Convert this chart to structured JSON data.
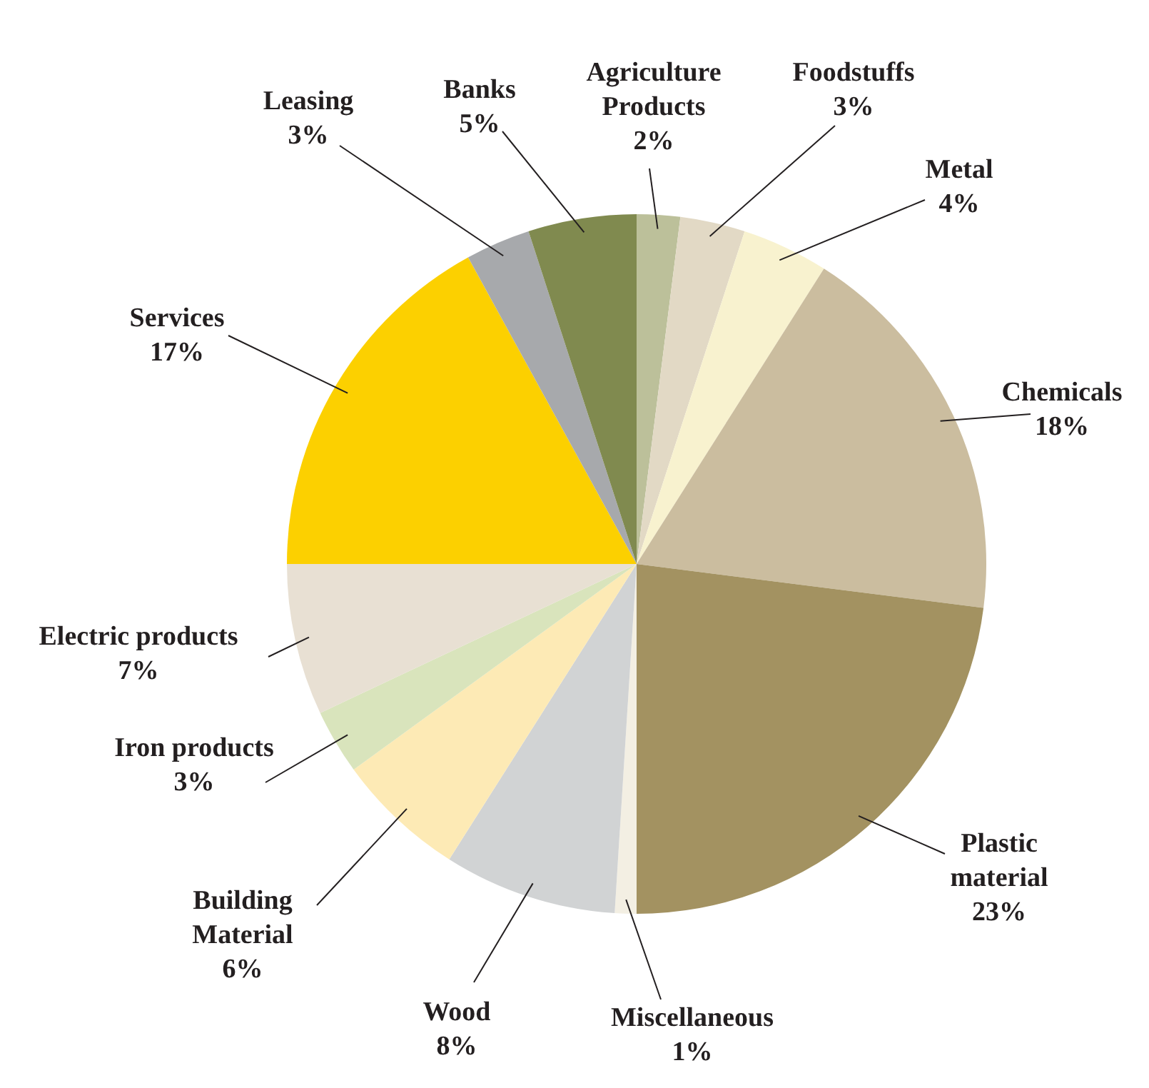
{
  "chart_data": {
    "type": "pie",
    "categories": [
      "Agriculture Products",
      "Foodstuffs",
      "Metal",
      "Chemicals",
      "Plastic material",
      "Miscellaneous",
      "Wood",
      "Building Material",
      "Iron products",
      "Electric products",
      "Services",
      "Leasing",
      "Banks"
    ],
    "values": [
      2,
      3,
      4,
      18,
      23,
      1,
      8,
      6,
      3,
      7,
      17,
      3,
      5
    ],
    "value_labels": [
      "2%",
      "3%",
      "4%",
      "18%",
      "23%",
      "1%",
      "8%",
      "6%",
      "3%",
      "7%",
      "17%",
      "3%",
      "5%"
    ],
    "colors": [
      "#bcc09a",
      "#e2d9c5",
      "#f8f2cf",
      "#cbbd9f",
      "#a39261",
      "#f3efe3",
      "#d1d3d4",
      "#fdeab5",
      "#d9e4bc",
      "#e8e0d3",
      "#fcd000",
      "#a7a9ac",
      "#808a4f"
    ],
    "legend": false
  }
}
